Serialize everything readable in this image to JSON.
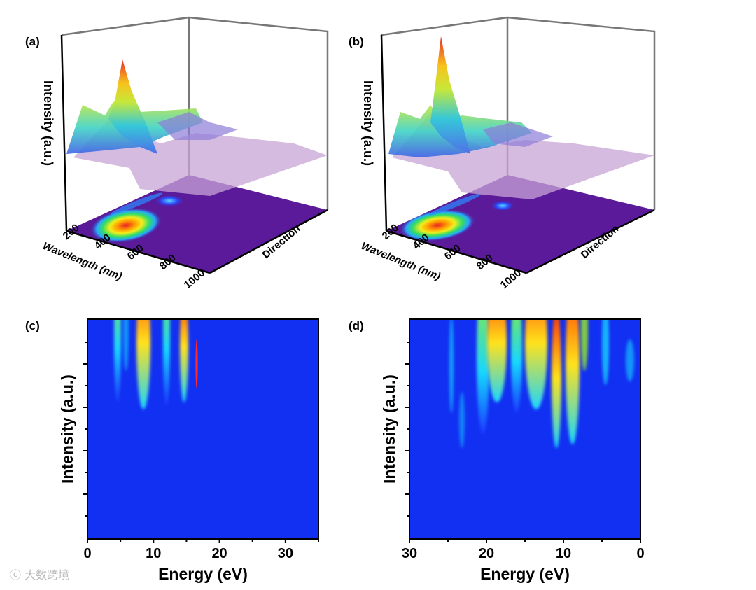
{
  "watermark": "大数跨境",
  "chart_data": [
    {
      "panel": "(a)",
      "type": "surface3d",
      "zlabel": "Intensity (a.u.)",
      "xlabel": "Wavelength (nm)",
      "ylabel": "Direction",
      "xticks": [
        "200",
        "400",
        "600",
        "800",
        "1000"
      ],
      "xlim": [
        200,
        1000
      ],
      "peak_wavelength_nm": 350
    },
    {
      "panel": "(b)",
      "type": "surface3d",
      "zlabel": "Intensity (a.u.)",
      "xlabel": "Wavelength (nm)",
      "ylabel": "Direction",
      "xticks": [
        "200",
        "400",
        "600",
        "800",
        "1000"
      ],
      "xlim": [
        200,
        1000
      ],
      "peak_wavelength_nm": 330
    },
    {
      "panel": "(c)",
      "type": "heatmap",
      "xlabel": "Energy (eV)",
      "ylabel": "Intensity (a.u.)",
      "xlim": [
        0,
        35
      ],
      "xticks": [
        "0",
        "10",
        "20",
        "30"
      ],
      "hot_energies_eV": [
        4.5,
        8.5,
        11.5,
        14.5,
        16.5
      ]
    },
    {
      "panel": "(d)",
      "type": "heatmap",
      "xlabel": "Energy (eV)",
      "ylabel": "Intensity (a.u.)",
      "xlim": [
        30,
        0
      ],
      "xticks": [
        "30",
        "20",
        "10",
        "0"
      ],
      "hot_energies_eV": [
        21,
        19,
        14,
        11,
        9,
        6
      ]
    }
  ]
}
